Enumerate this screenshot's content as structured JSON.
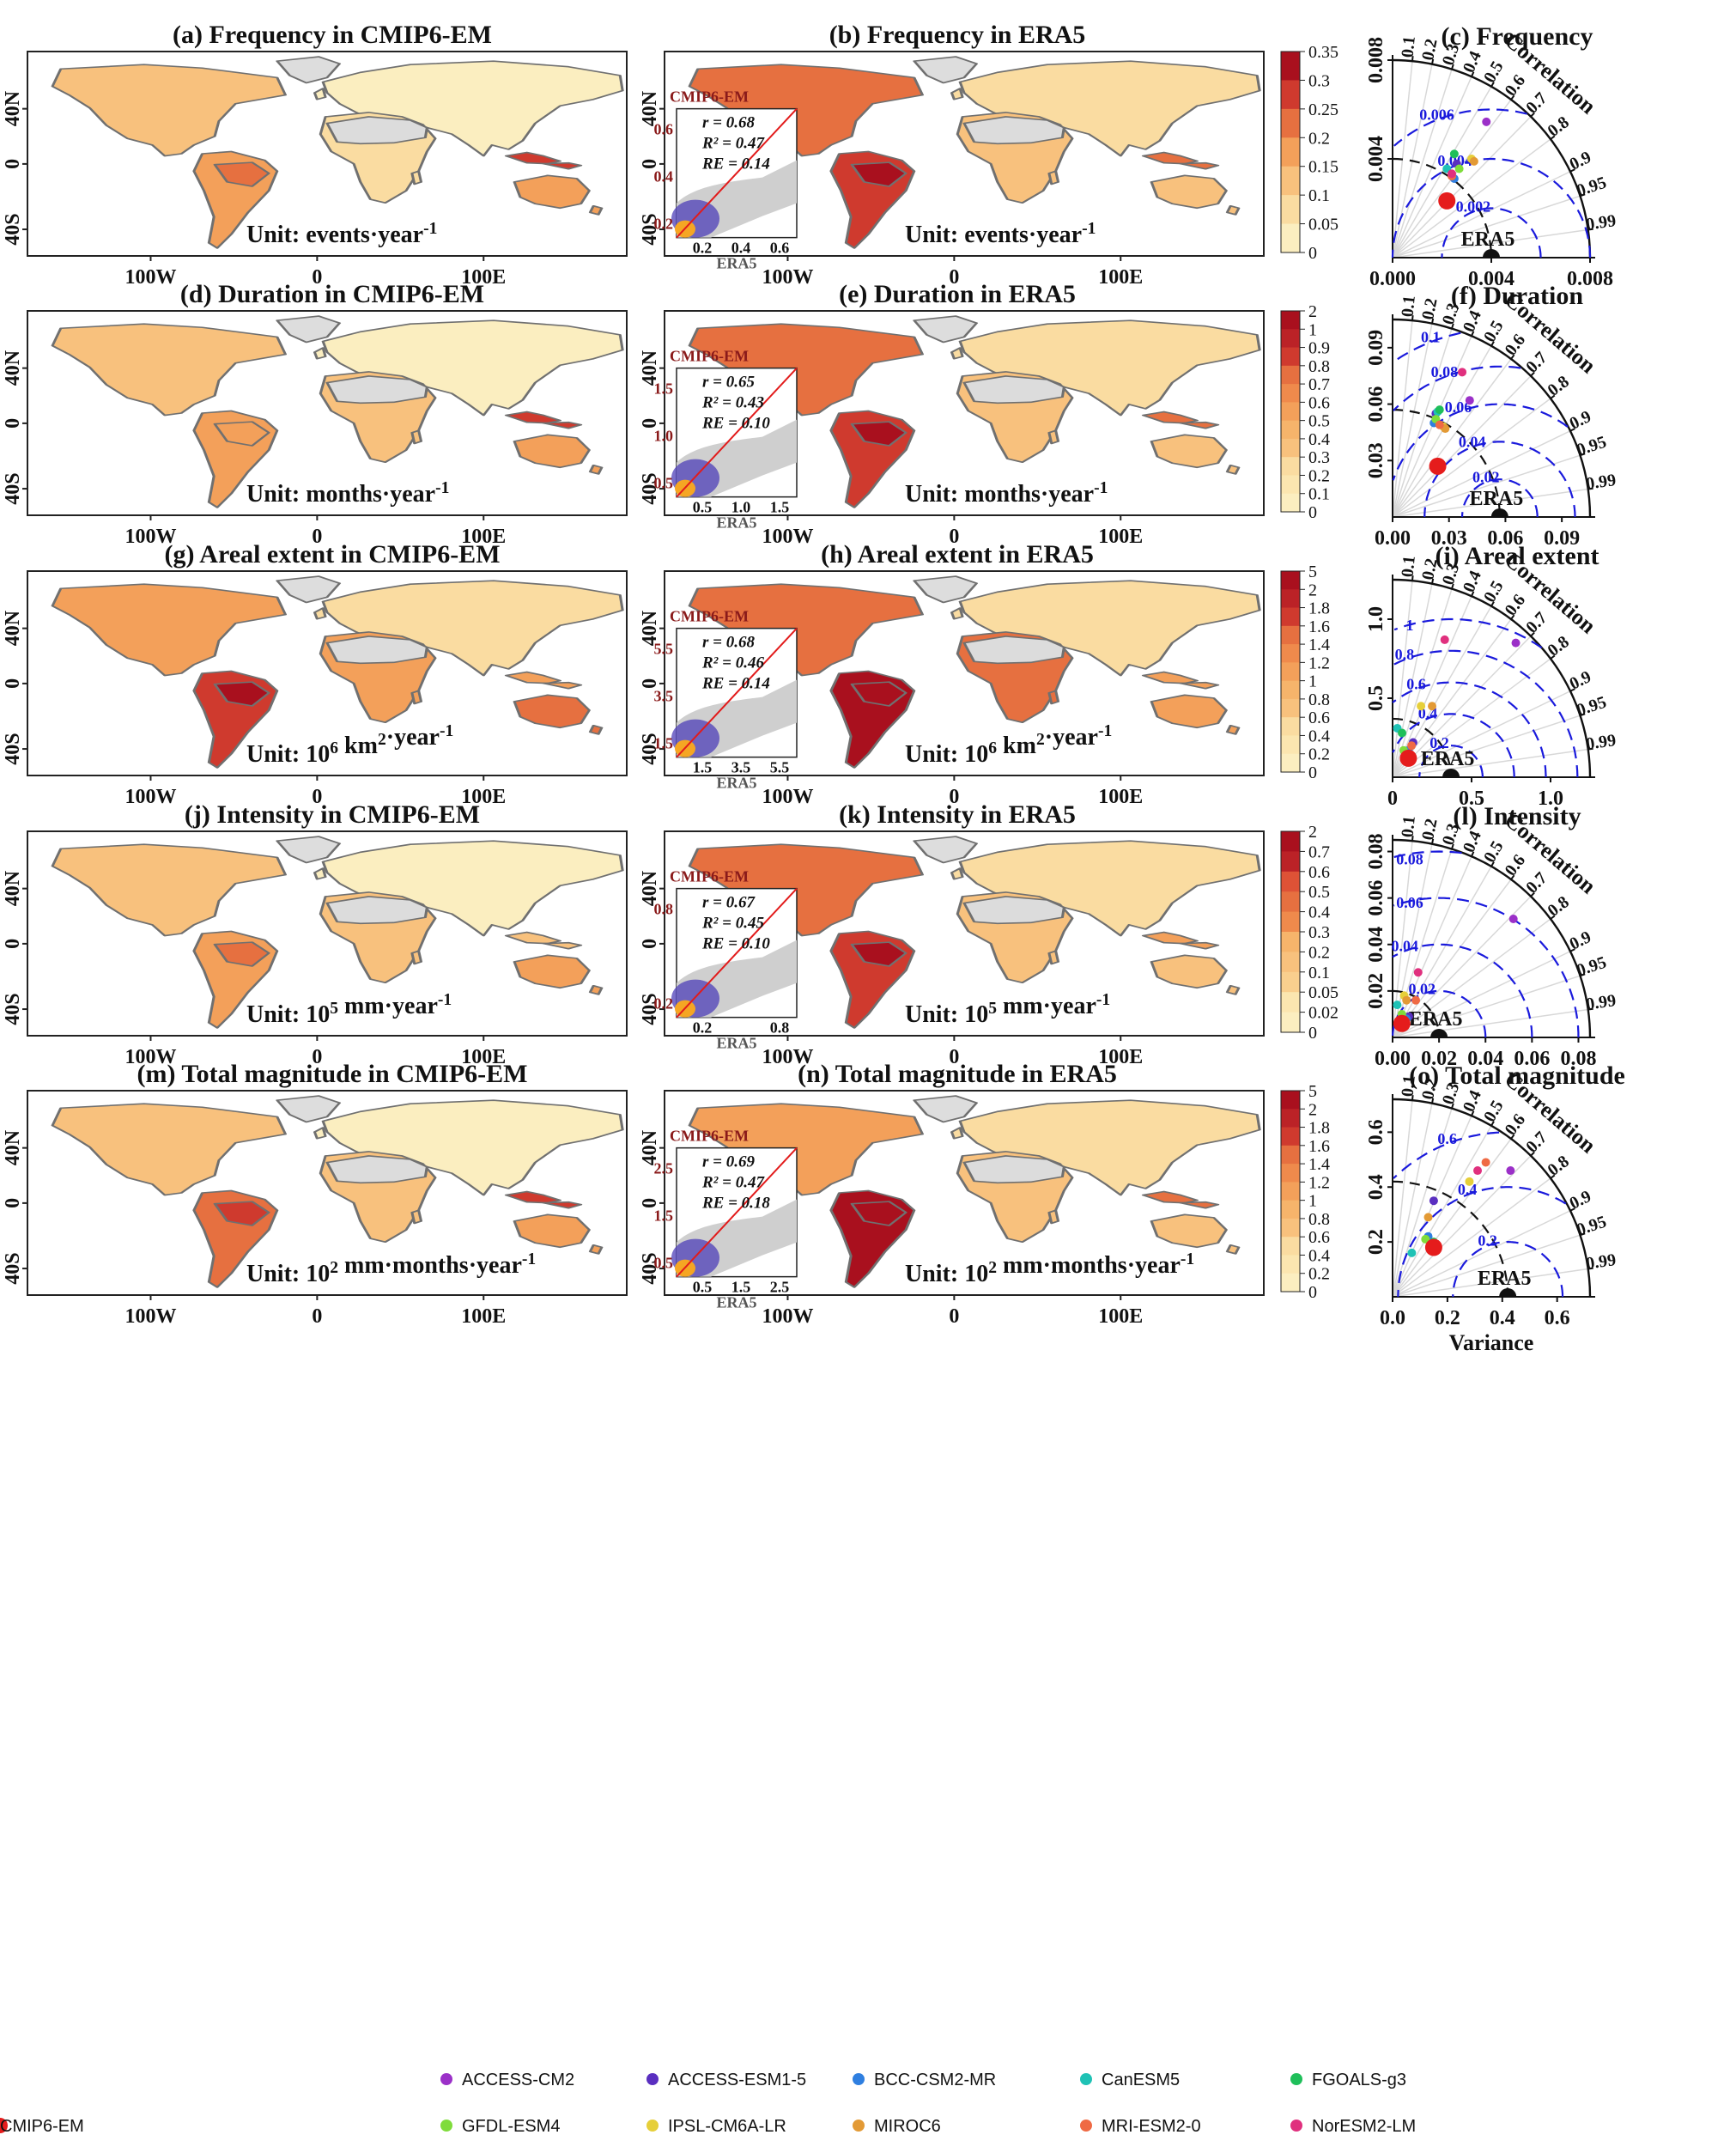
{
  "chart_data": {
    "type": "figure",
    "rows": [
      {
        "metric": "Frequency",
        "map_em_title": "(a) Frequency in CMIP6-EM",
        "map_era_title": "(b) Frequency in ERA5",
        "taylor_title": "(c) Frequency",
        "unit": "Unit: events·year⁻¹",
        "colorbar_ticks": [
          "0.35",
          "0.3",
          "0.25",
          "0.2",
          "0.15",
          "0.1",
          "0.05",
          "0"
        ],
        "scatter": {
          "ylabel": "CMIP6-EM",
          "xlabel": "ERA5",
          "r": "r = 0.68",
          "r2": "R² = 0.47",
          "re": "RE = 0.14",
          "yticks": [
            "0.6",
            "0.4",
            "0.2"
          ],
          "xticks": [
            "0.2",
            "0.4",
            "0.6"
          ]
        },
        "taylor": {
          "max": 0.008,
          "xticks": [
            "0.000",
            "0.004",
            "0.008"
          ],
          "yticks": [
            "0.008",
            "0.004"
          ],
          "ref": 0.004,
          "rms": [
            0.002,
            0.004,
            0.006
          ],
          "rms_labels": [
            "0.002",
            "0.004",
            "0.006"
          ],
          "corr_labels": [
            "0.1",
            "0.2",
            "0.3",
            "0.4",
            "0.5",
            "0.6",
            "0.7",
            "0.8",
            "0.9",
            "0.95",
            "0.99"
          ],
          "corr_title": "Correlation",
          "ref_label": "ERA5",
          "models": [
            {
              "name": "ACCESS-CM2",
              "x": 0.0038,
              "y": 0.0055
            },
            {
              "name": "ACCESS-ESM1-5",
              "x": 0.0026,
              "y": 0.0038
            },
            {
              "name": "BCC-CSM2-MR",
              "x": 0.0025,
              "y": 0.0032
            },
            {
              "name": "CanESM5",
              "x": 0.0022,
              "y": 0.0036
            },
            {
              "name": "FGOALS-g3",
              "x": 0.0025,
              "y": 0.0042
            },
            {
              "name": "GFDL-ESM4",
              "x": 0.0027,
              "y": 0.0036
            },
            {
              "name": "IPSL-CM6A-LR",
              "x": 0.0032,
              "y": 0.004
            },
            {
              "name": "MIROC6",
              "x": 0.0033,
              "y": 0.0039
            },
            {
              "name": "MRI-ESM2-0",
              "x": 0.0024,
              "y": 0.0033
            },
            {
              "name": "NorESM2-LM",
              "x": 0.0024,
              "y": 0.0034
            },
            {
              "name": "CMIP6-EM",
              "x": 0.0022,
              "y": 0.0023
            }
          ]
        }
      },
      {
        "metric": "Duration",
        "map_em_title": "(d) Duration in CMIP6-EM",
        "map_era_title": "(e) Duration in ERA5",
        "taylor_title": "(f) Duration",
        "unit": "Unit: months·year⁻¹",
        "colorbar_ticks": [
          "2",
          "1",
          "0.9",
          "0.8",
          "0.7",
          "0.6",
          "0.5",
          "0.4",
          "0.3",
          "0.2",
          "0.1",
          "0"
        ],
        "scatter": {
          "ylabel": "CMIP6-EM",
          "xlabel": "ERA5",
          "r": "r = 0.65",
          "r2": "R² = 0.43",
          "re": "RE = 0.10",
          "yticks": [
            "1.5",
            "1.0",
            "0.5"
          ],
          "xticks": [
            "0.5",
            "1.0",
            "1.5"
          ]
        },
        "taylor": {
          "max": 0.105,
          "xticks": [
            "0.00",
            "0.03",
            "0.06",
            "0.09"
          ],
          "yticks": [
            "0.09",
            "0.06",
            "0.03"
          ],
          "ref": 0.057,
          "rms": [
            0.02,
            0.04,
            0.06,
            0.08,
            0.1
          ],
          "rms_labels": [
            "0.02",
            "0.04",
            "0.06",
            "0.08",
            "0.1"
          ],
          "corr_labels": [
            "0.1",
            "0.2",
            "0.3",
            "0.4",
            "0.5",
            "0.6",
            "0.7",
            "0.8",
            "0.9",
            "0.95",
            "0.99"
          ],
          "corr_title": "Correlation",
          "ref_label": "ERA5",
          "models": [
            {
              "name": "ACCESS-CM2",
              "x": 0.041,
              "y": 0.062
            },
            {
              "name": "ACCESS-ESM1-5",
              "x": 0.023,
              "y": 0.055
            },
            {
              "name": "BCC-CSM2-MR",
              "x": 0.022,
              "y": 0.05
            },
            {
              "name": "CanESM5",
              "x": 0.024,
              "y": 0.056
            },
            {
              "name": "FGOALS-g3",
              "x": 0.025,
              "y": 0.057
            },
            {
              "name": "GFDL-ESM4",
              "x": 0.023,
              "y": 0.052
            },
            {
              "name": "IPSL-CM6A-LR",
              "x": 0.027,
              "y": 0.048
            },
            {
              "name": "MIROC6",
              "x": 0.028,
              "y": 0.047
            },
            {
              "name": "MRI-ESM2-0",
              "x": 0.025,
              "y": 0.049
            },
            {
              "name": "NorESM2-LM",
              "x": 0.037,
              "y": 0.077
            },
            {
              "name": "CMIP6-EM",
              "x": 0.024,
              "y": 0.027
            }
          ]
        }
      },
      {
        "metric": "Areal extent",
        "map_em_title": "(g) Areal extent in CMIP6-EM",
        "map_era_title": "(h) Areal extent in ERA5",
        "taylor_title": "(i) Areal extent",
        "unit": "Unit: 10⁶ km²·year⁻¹",
        "colorbar_ticks": [
          "5",
          "2",
          "1.8",
          "1.6",
          "1.4",
          "1.2",
          "1",
          "0.8",
          "0.6",
          "0.4",
          "0.2",
          "0"
        ],
        "scatter": {
          "ylabel": "CMIP6-EM",
          "xlabel": "ERA5",
          "r": "r = 0.68",
          "r2": "R² = 0.46",
          "re": "RE = 0.14",
          "yticks": [
            "5.5",
            "3.5",
            "1.5"
          ],
          "xticks": [
            "1.5",
            "3.5",
            "5.5"
          ]
        },
        "taylor": {
          "max": 1.25,
          "xticks": [
            "0",
            "0.5",
            "1.0"
          ],
          "yticks": [
            "1.0",
            "0.5"
          ],
          "ref": 0.37,
          "rms": [
            0.2,
            0.4,
            0.6,
            0.8,
            1.0
          ],
          "rms_labels": [
            "0.2",
            "0.4",
            "0.6",
            "0.8",
            "1"
          ],
          "corr_labels": [
            "0.1",
            "0.2",
            "0.3",
            "0.4",
            "0.5",
            "0.6",
            "0.7",
            "0.8",
            "0.9",
            "0.95",
            "0.99"
          ],
          "corr_title": "Correlation",
          "ref_label": "ERA5",
          "models": [
            {
              "name": "ACCESS-CM2",
              "x": 0.78,
              "y": 0.85
            },
            {
              "name": "ACCESS-ESM1-5",
              "x": 0.13,
              "y": 0.22
            },
            {
              "name": "BCC-CSM2-MR",
              "x": 0.1,
              "y": 0.17
            },
            {
              "name": "CanESM5",
              "x": 0.03,
              "y": 0.31
            },
            {
              "name": "FGOALS-g3",
              "x": 0.06,
              "y": 0.28
            },
            {
              "name": "GFDL-ESM4",
              "x": 0.07,
              "y": 0.17
            },
            {
              "name": "IPSL-CM6A-LR",
              "x": 0.18,
              "y": 0.45
            },
            {
              "name": "MIROC6",
              "x": 0.25,
              "y": 0.45
            },
            {
              "name": "MRI-ESM2-0",
              "x": 0.12,
              "y": 0.2
            },
            {
              "name": "NorESM2-LM",
              "x": 0.33,
              "y": 0.87
            },
            {
              "name": "CMIP6-EM",
              "x": 0.1,
              "y": 0.12
            }
          ]
        }
      },
      {
        "metric": "Intensity",
        "map_em_title": "(j) Intensity in CMIP6-EM",
        "map_era_title": "(k) Intensity in ERA5",
        "taylor_title": "(l) Intensity",
        "unit": "Unit: 10⁵ mm·year⁻¹",
        "colorbar_ticks": [
          "2",
          "0.7",
          "0.6",
          "0.5",
          "0.4",
          "0.3",
          "0.2",
          "0.1",
          "0.05",
          "0.02",
          "0"
        ],
        "scatter": {
          "ylabel": "CMIP6-EM",
          "xlabel": "ERA5",
          "r": "r = 0.67",
          "r2": "R² = 0.45",
          "re": "RE = 0.10",
          "yticks": [
            "0.8",
            "0.2"
          ],
          "xticks": [
            "0.2",
            "0.8"
          ]
        },
        "taylor": {
          "max": 0.085,
          "xticks": [
            "0.00",
            "0.02",
            "0.04",
            "0.06",
            "0.08"
          ],
          "yticks": [
            "0.08",
            "0.06",
            "0.04",
            "0.02"
          ],
          "ref": 0.02,
          "rms": [
            0.02,
            0.04,
            0.06,
            0.08
          ],
          "rms_labels": [
            "0.02",
            "0.04",
            "0.06",
            "0.08"
          ],
          "corr_labels": [
            "0.1",
            "0.2",
            "0.3",
            "0.4",
            "0.5",
            "0.6",
            "0.7",
            "0.8",
            "0.9",
            "0.95",
            "0.99"
          ],
          "corr_title": "Correlation",
          "ref_label": "ERA5",
          "models": [
            {
              "name": "ACCESS-CM2",
              "x": 0.052,
              "y": 0.051
            },
            {
              "name": "ACCESS-ESM1-5",
              "x": 0.007,
              "y": 0.009
            },
            {
              "name": "BCC-CSM2-MR",
              "x": 0.006,
              "y": 0.008
            },
            {
              "name": "CanESM5",
              "x": 0.002,
              "y": 0.014
            },
            {
              "name": "FGOALS-g3",
              "x": 0.003,
              "y": 0.006
            },
            {
              "name": "GFDL-ESM4",
              "x": 0.004,
              "y": 0.01
            },
            {
              "name": "IPSL-CM6A-LR",
              "x": 0.005,
              "y": 0.018
            },
            {
              "name": "MIROC6",
              "x": 0.006,
              "y": 0.016
            },
            {
              "name": "MRI-ESM2-0",
              "x": 0.01,
              "y": 0.016
            },
            {
              "name": "NorESM2-LM",
              "x": 0.011,
              "y": 0.028
            },
            {
              "name": "CMIP6-EM",
              "x": 0.004,
              "y": 0.006
            }
          ]
        }
      },
      {
        "metric": "Total magnitude",
        "map_em_title": "(m) Total magnitude in CMIP6-EM",
        "map_era_title": "(n) Total magnitude in ERA5",
        "taylor_title": "(o) Total magnitude",
        "unit": "Unit: 10² mm·months·year⁻¹",
        "colorbar_ticks": [
          "5",
          "2",
          "1.8",
          "1.6",
          "1.4",
          "1.2",
          "1",
          "0.8",
          "0.6",
          "0.4",
          "0.2",
          "0"
        ],
        "scatter": {
          "ylabel": "CMIP6-EM",
          "xlabel": "ERA5",
          "r": "r = 0.69",
          "r2": "R² = 0.47",
          "re": "RE = 0.18",
          "yticks": [
            "2.5",
            "1.5",
            "0.5"
          ],
          "xticks": [
            "0.5",
            "1.5",
            "2.5"
          ]
        },
        "taylor": {
          "max": 0.72,
          "xticks": [
            "0.0",
            "0.2",
            "0.4",
            "0.6"
          ],
          "yticks": [
            "0.6",
            "0.4",
            "0.2"
          ],
          "ref": 0.42,
          "rms": [
            0.2,
            0.4,
            0.6
          ],
          "rms_labels": [
            "0.2",
            "0.4",
            "0.6"
          ],
          "corr_labels": [
            "0.1",
            "0.2",
            "0.3",
            "0.4",
            "0.5",
            "0.6",
            "0.7",
            "0.8",
            "0.9",
            "0.95",
            "0.99"
          ],
          "corr_title": "Correlation",
          "ref_label": "ERA5",
          "xlabel": "Variance",
          "models": [
            {
              "name": "ACCESS-CM2",
              "x": 0.43,
              "y": 0.46
            },
            {
              "name": "ACCESS-ESM1-5",
              "x": 0.15,
              "y": 0.35
            },
            {
              "name": "BCC-CSM2-MR",
              "x": 0.13,
              "y": 0.22
            },
            {
              "name": "CanESM5",
              "x": 0.07,
              "y": 0.16
            },
            {
              "name": "FGOALS-g3",
              "x": 0.15,
              "y": 0.2
            },
            {
              "name": "GFDL-ESM4",
              "x": 0.12,
              "y": 0.21
            },
            {
              "name": "IPSL-CM6A-LR",
              "x": 0.28,
              "y": 0.42
            },
            {
              "name": "MIROC6",
              "x": 0.13,
              "y": 0.29
            },
            {
              "name": "MRI-ESM2-0",
              "x": 0.34,
              "y": 0.49
            },
            {
              "name": "NorESM2-LM",
              "x": 0.31,
              "y": 0.46
            },
            {
              "name": "CMIP6-EM",
              "x": 0.15,
              "y": 0.18
            }
          ]
        }
      }
    ],
    "map_axes": {
      "lat_ticks": [
        "40N",
        "0",
        "40S"
      ],
      "lon_ticks": [
        "100W",
        "0",
        "100E"
      ]
    },
    "legend": [
      {
        "name": "ACCESS-CM2",
        "color": "#9b30c8"
      },
      {
        "name": "ACCESS-ESM1-5",
        "color": "#5a2fc0"
      },
      {
        "name": "BCC-CSM2-MR",
        "color": "#2f7fe0"
      },
      {
        "name": "CanESM5",
        "color": "#1fc2b5"
      },
      {
        "name": "FGOALS-g3",
        "color": "#1fbf5a"
      },
      {
        "name": "GFDL-ESM4",
        "color": "#7fdc3c"
      },
      {
        "name": "IPSL-CM6A-LR",
        "color": "#e6cf3a"
      },
      {
        "name": "MIROC6",
        "color": "#e39a35"
      },
      {
        "name": "MRI-ESM2-0",
        "color": "#ef6a44"
      },
      {
        "name": "NorESM2-LM",
        "color": "#e0307e"
      },
      {
        "name": "CMIP6-EM",
        "color": "#e51c1c"
      }
    ]
  }
}
